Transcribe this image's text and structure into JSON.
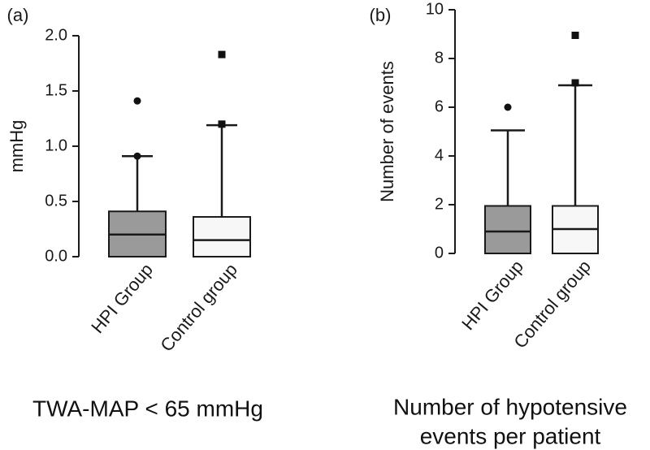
{
  "chart_data": [
    {
      "type": "box",
      "panel_label": "(a)",
      "title": "TWA-MAP < 65 mmHg",
      "ylabel": "mmHg",
      "ylim": [
        0,
        2.0
      ],
      "yticks": [
        "0.0",
        "0.5",
        "1.0",
        "1.5",
        "2.0"
      ],
      "ytick_values": [
        0,
        0.5,
        1.0,
        1.5,
        2.0
      ],
      "categories": [
        "HPI Group",
        "Control group"
      ],
      "boxes": [
        {
          "name": "HPI Group",
          "color": "#9a9a9a",
          "min": 0.0,
          "q1": 0.0,
          "median": 0.2,
          "q3": 0.41,
          "max": 0.91,
          "outliers": [
            0.91,
            1.41
          ],
          "marker": "circle"
        },
        {
          "name": "Control group",
          "color": "#f7f7f7",
          "min": 0.0,
          "q1": 0.0,
          "median": 0.15,
          "q3": 0.36,
          "max": 1.19,
          "outliers": [
            1.2,
            1.83
          ],
          "marker": "square"
        }
      ]
    },
    {
      "type": "box",
      "panel_label": "(b)",
      "title": "Number of hypotensive events per patient",
      "title_lines": [
        "Number of hypotensive",
        "events per patient"
      ],
      "ylabel": "Number of events",
      "ylim": [
        0,
        10
      ],
      "yticks": [
        "0",
        "2",
        "4",
        "6",
        "8",
        "10"
      ],
      "ytick_values": [
        0,
        2,
        4,
        6,
        8,
        10
      ],
      "categories": [
        "HPI Group",
        "Control group"
      ],
      "boxes": [
        {
          "name": "HPI Group",
          "color": "#9a9a9a",
          "min": 0,
          "q1": 0,
          "median": 0.9,
          "q3": 1.95,
          "max": 5.05,
          "outliers": [
            6.0
          ],
          "marker": "circle"
        },
        {
          "name": "Control group",
          "color": "#f7f7f7",
          "min": 0,
          "q1": 0,
          "median": 1.0,
          "q3": 1.95,
          "max": 6.9,
          "outliers": [
            7.0,
            8.95
          ],
          "marker": "square"
        }
      ]
    }
  ]
}
